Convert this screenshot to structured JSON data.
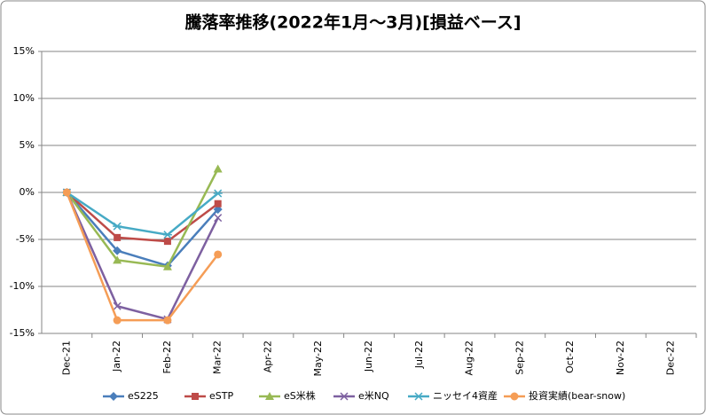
{
  "chart_data": {
    "type": "line",
    "title": "騰落率推移(2022年1月～3月)[損益ベース]",
    "categories": [
      "Dec-21",
      "Jan-22",
      "Feb-22",
      "Mar-22",
      "Apr-22",
      "May-22",
      "Jun-22",
      "Jul-22",
      "Aug-22",
      "Sep-22",
      "Oct-22",
      "Nov-22",
      "Dec-22"
    ],
    "series": [
      {
        "name": "eS225",
        "color": "#4a7ebb",
        "marker": "diamond",
        "values": [
          0,
          -6.2,
          -7.8,
          -1.8,
          null,
          null,
          null,
          null,
          null,
          null,
          null,
          null,
          null
        ]
      },
      {
        "name": "eSTP",
        "color": "#be4b48",
        "marker": "square",
        "values": [
          0,
          -4.8,
          -5.2,
          -1.2,
          null,
          null,
          null,
          null,
          null,
          null,
          null,
          null,
          null
        ]
      },
      {
        "name": "eS米株",
        "color": "#98b954",
        "marker": "triangle",
        "values": [
          0,
          -7.2,
          -7.9,
          2.5,
          null,
          null,
          null,
          null,
          null,
          null,
          null,
          null,
          null
        ]
      },
      {
        "name": "e米NQ",
        "color": "#7d60a0",
        "marker": "x",
        "values": [
          0,
          -12.1,
          -13.5,
          -2.7,
          null,
          null,
          null,
          null,
          null,
          null,
          null,
          null,
          null
        ]
      },
      {
        "name": "ニッセイ4資産",
        "color": "#46aac5",
        "marker": "star",
        "values": [
          0,
          -3.6,
          -4.5,
          -0.1,
          null,
          null,
          null,
          null,
          null,
          null,
          null,
          null,
          null
        ]
      },
      {
        "name": "投資実績(bear-snow)",
        "color": "#f59d56",
        "marker": "circle",
        "values": [
          0,
          -13.6,
          -13.6,
          -6.6,
          null,
          null,
          null,
          null,
          null,
          null,
          null,
          null,
          null
        ]
      }
    ],
    "ylim": [
      -15,
      15
    ],
    "yticks": [
      {
        "value": -15,
        "label": "-15%"
      },
      {
        "value": -10,
        "label": "-10%"
      },
      {
        "value": -5,
        "label": "-5%"
      },
      {
        "value": 0,
        "label": "0%"
      },
      {
        "value": 5,
        "label": "5%"
      },
      {
        "value": 10,
        "label": "10%"
      },
      {
        "value": 15,
        "label": "15%"
      }
    ],
    "grid": true,
    "legend": "bottom"
  }
}
